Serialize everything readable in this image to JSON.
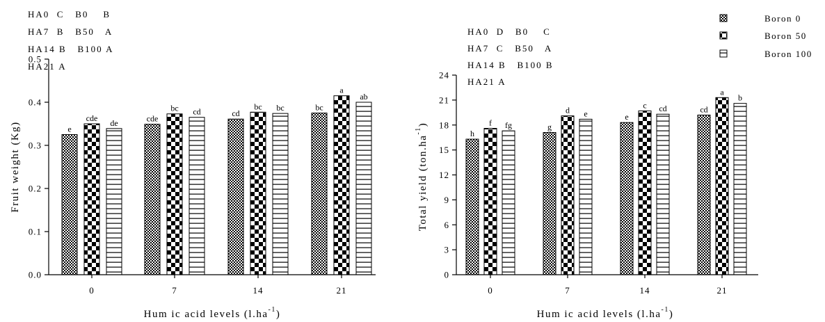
{
  "legend": {
    "position": "top-right",
    "items": [
      {
        "label": "Boron 0",
        "pattern": "check-fine"
      },
      {
        "label": "Boron 50",
        "pattern": "check-coarse"
      },
      {
        "label": "Boron 100",
        "pattern": "hlines"
      }
    ]
  },
  "chart_data": [
    {
      "type": "bar",
      "title": "",
      "xlabel": "Hum ic acid levels (l.ha",
      "xlabel_sup": "-1",
      "xlabel_close": ")",
      "ylabel": "Fruit weight (Kg)",
      "ylim": [
        0,
        0.5
      ],
      "yticks": [
        0.0,
        0.1,
        0.2,
        0.3,
        0.4,
        0.5
      ],
      "ytick_labels": [
        "0.0",
        "0.1",
        "0.2",
        "0.3",
        "0.4",
        "0.5"
      ],
      "categories": [
        "0",
        "7",
        "14",
        "21"
      ],
      "series": [
        {
          "name": "Boron 0",
          "pattern": "check-fine",
          "values": [
            0.325,
            0.349,
            0.361,
            0.375
          ],
          "letters": [
            "e",
            "cde",
            "cd",
            "bc"
          ]
        },
        {
          "name": "Boron 50",
          "pattern": "check-coarse",
          "values": [
            0.35,
            0.373,
            0.377,
            0.415
          ],
          "letters": [
            "cde",
            "bc",
            "bc",
            "a"
          ]
        },
        {
          "name": "Boron 100",
          "pattern": "hlines",
          "values": [
            0.339,
            0.365,
            0.374,
            0.4
          ],
          "letters": [
            "de",
            "cd",
            "bc",
            "ab"
          ]
        }
      ],
      "annotation_lines": [
        "HA0  C   B0    B",
        "HA7  B   B50   A",
        "HA14 B   B100 A",
        "HA21 A"
      ]
    },
    {
      "type": "bar",
      "title": "",
      "xlabel": "Hum ic acid levels (l.ha",
      "xlabel_sup": "-1",
      "xlabel_close": ")",
      "ylabel": "Total yield (ton.ha",
      "ylabel_sup": "-1",
      "ylabel_close": ")",
      "ylim": [
        0,
        24
      ],
      "yticks": [
        0,
        3,
        6,
        9,
        12,
        15,
        18,
        21,
        24
      ],
      "ytick_labels": [
        "0",
        "3",
        "6",
        "9",
        "12",
        "15",
        "18",
        "21",
        "24"
      ],
      "categories": [
        "0",
        "7",
        "14",
        "21"
      ],
      "series": [
        {
          "name": "Boron 0",
          "pattern": "check-fine",
          "values": [
            16.3,
            17.1,
            18.3,
            19.2
          ],
          "letters": [
            "h",
            "g",
            "e",
            "cd"
          ]
        },
        {
          "name": "Boron 50",
          "pattern": "check-coarse",
          "values": [
            17.6,
            19.1,
            19.7,
            21.3
          ],
          "letters": [
            "f",
            "d",
            "c",
            "a"
          ]
        },
        {
          "name": "Boron 100",
          "pattern": "hlines",
          "values": [
            17.3,
            18.7,
            19.3,
            20.6
          ],
          "letters": [
            "fg",
            "e",
            "cd",
            "b"
          ]
        }
      ],
      "annotation_lines": [
        "HA0  D   B0    C",
        "HA7  C   B50   A",
        "HA14 B   B100 B",
        "HA21 A"
      ]
    }
  ]
}
